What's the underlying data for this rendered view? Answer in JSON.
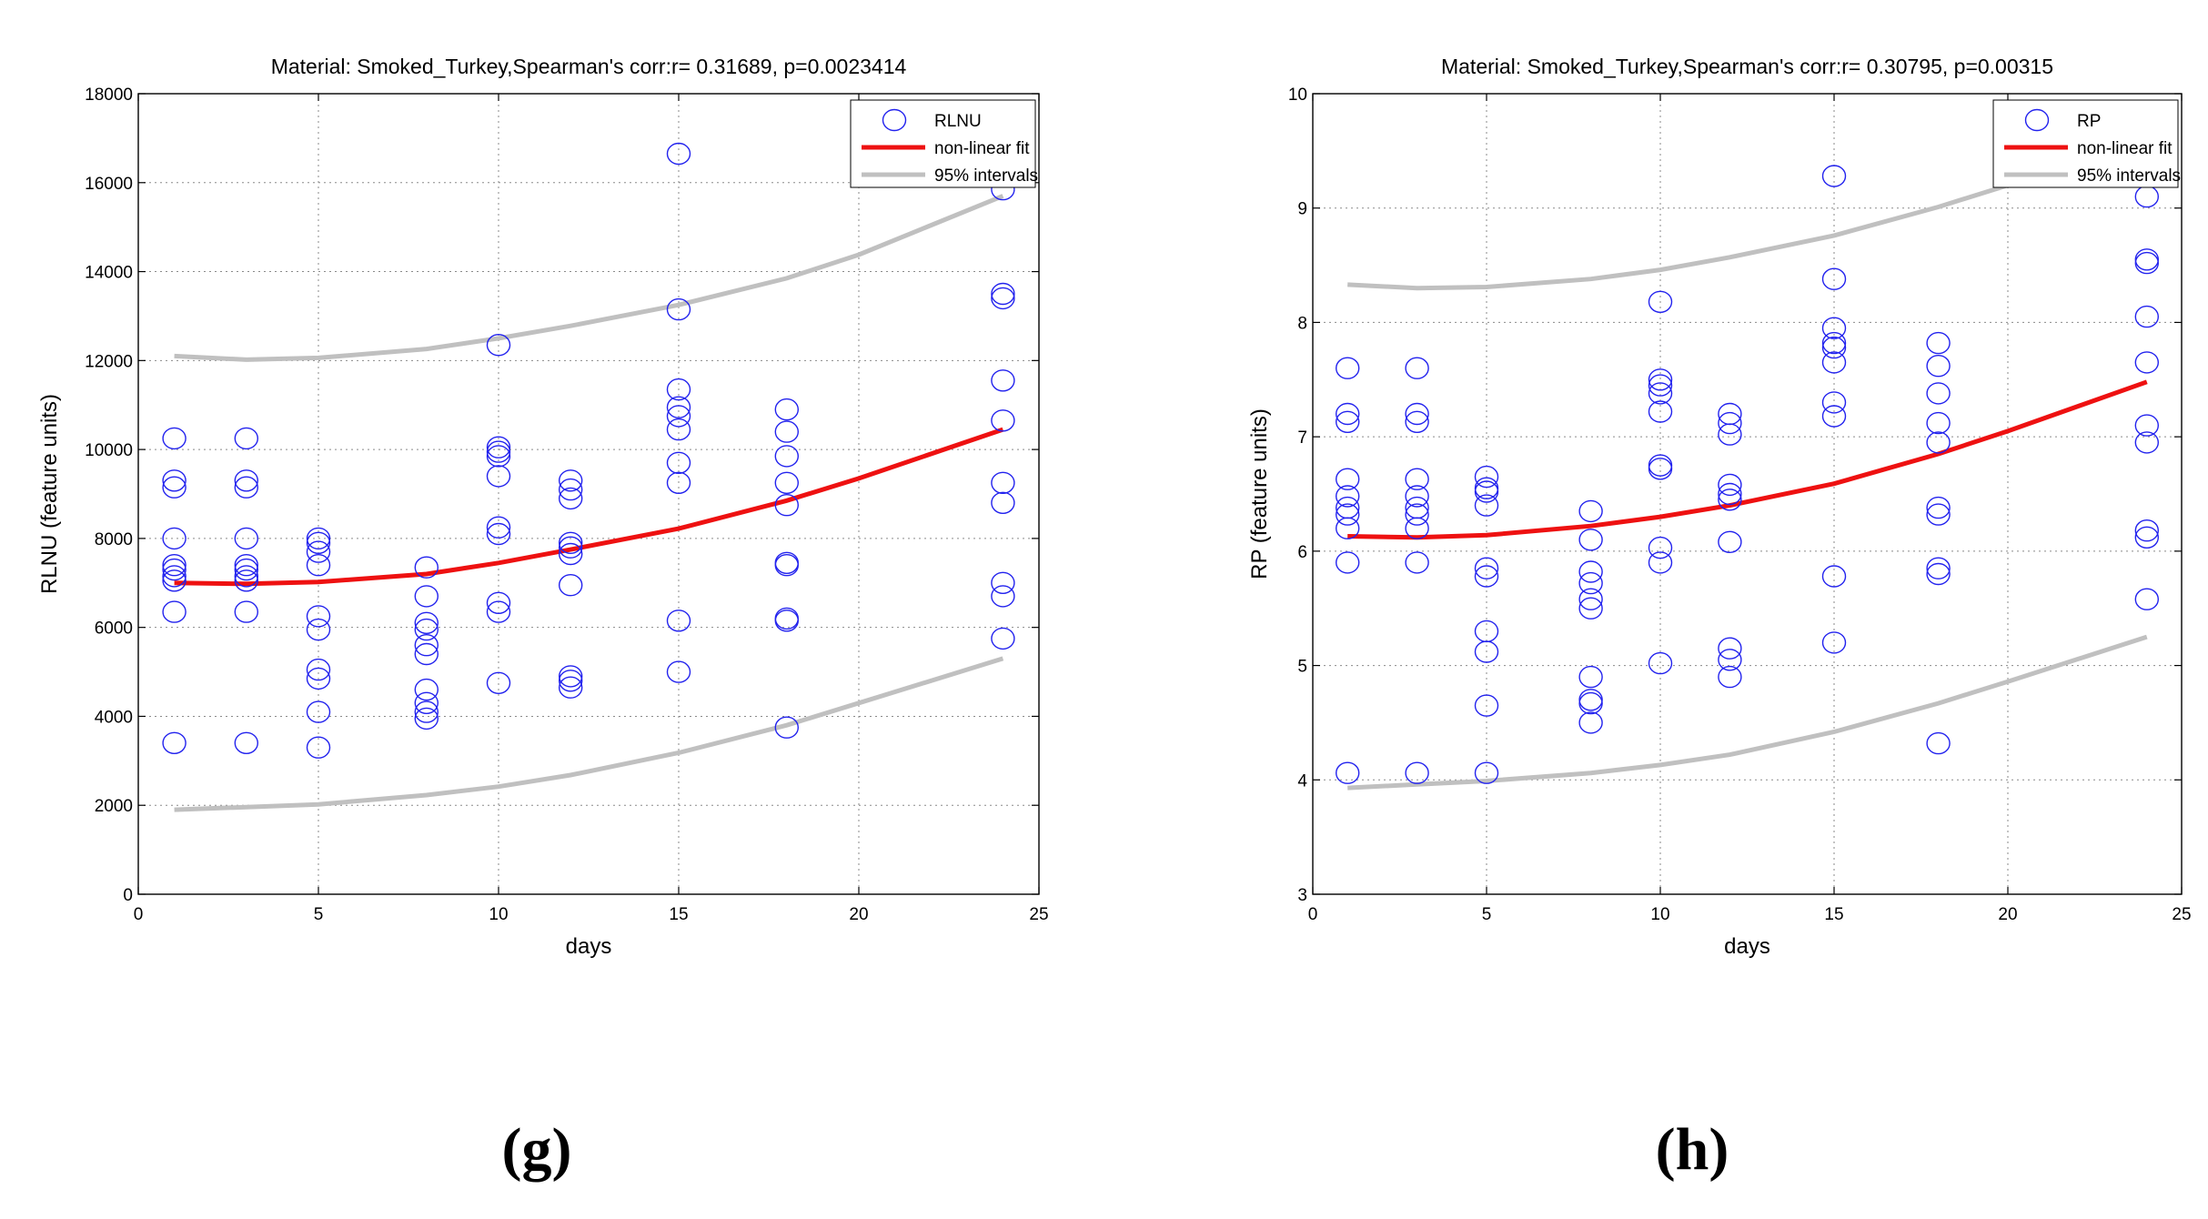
{
  "chart_data": [
    {
      "panel": "g",
      "type": "scatter",
      "title": "Material: Smoked_Turkey,Spearman's corr:r= 0.31689, p=0.0023414",
      "xlabel": "days",
      "ylabel": "RLNU (feature units)",
      "xlim": [
        0,
        25
      ],
      "ylim": [
        0,
        18000
      ],
      "xticks": [
        0,
        5,
        10,
        15,
        20,
        25
      ],
      "yticks": [
        0,
        2000,
        4000,
        6000,
        8000,
        10000,
        12000,
        14000,
        16000,
        18000
      ],
      "grid": true,
      "legend": {
        "position": "top-right",
        "entries": [
          "RLNU",
          "non-linear fit",
          "95% intervals"
        ]
      },
      "colors": {
        "points": "#2222ee",
        "fit": "#ee1111",
        "interval": "#c0c0c0"
      },
      "points": [
        [
          1,
          10250
        ],
        [
          1,
          9300
        ],
        [
          1,
          9150
        ],
        [
          1,
          8000
        ],
        [
          1,
          7400
        ],
        [
          1,
          7300
        ],
        [
          1,
          7150
        ],
        [
          1,
          7050
        ],
        [
          1,
          6350
        ],
        [
          1,
          3400
        ],
        [
          3,
          10250
        ],
        [
          3,
          9300
        ],
        [
          3,
          9150
        ],
        [
          3,
          8000
        ],
        [
          3,
          7400
        ],
        [
          3,
          7300
        ],
        [
          3,
          7150
        ],
        [
          3,
          7050
        ],
        [
          3,
          6350
        ],
        [
          3,
          3400
        ],
        [
          5,
          8000
        ],
        [
          5,
          7900
        ],
        [
          5,
          7700
        ],
        [
          5,
          7400
        ],
        [
          5,
          6250
        ],
        [
          5,
          5950
        ],
        [
          5,
          5050
        ],
        [
          5,
          4850
        ],
        [
          5,
          4100
        ],
        [
          5,
          3300
        ],
        [
          8,
          7350
        ],
        [
          8,
          6700
        ],
        [
          8,
          6100
        ],
        [
          8,
          5950
        ],
        [
          8,
          5600
        ],
        [
          8,
          5400
        ],
        [
          8,
          4600
        ],
        [
          8,
          4300
        ],
        [
          8,
          4100
        ],
        [
          8,
          3950
        ],
        [
          10,
          12350
        ],
        [
          10,
          10050
        ],
        [
          10,
          9950
        ],
        [
          10,
          9850
        ],
        [
          10,
          9400
        ],
        [
          10,
          8250
        ],
        [
          10,
          8100
        ],
        [
          10,
          6550
        ],
        [
          10,
          6350
        ],
        [
          10,
          4750
        ],
        [
          12,
          9300
        ],
        [
          12,
          9100
        ],
        [
          12,
          8900
        ],
        [
          12,
          7900
        ],
        [
          12,
          7800
        ],
        [
          12,
          7650
        ],
        [
          12,
          6950
        ],
        [
          12,
          4900
        ],
        [
          12,
          4800
        ],
        [
          12,
          4650
        ],
        [
          15,
          16650
        ],
        [
          15,
          13150
        ],
        [
          15,
          11350
        ],
        [
          15,
          10950
        ],
        [
          15,
          10750
        ],
        [
          15,
          10450
        ],
        [
          15,
          9700
        ],
        [
          15,
          9250
        ],
        [
          15,
          6150
        ],
        [
          15,
          5000
        ],
        [
          18,
          10900
        ],
        [
          18,
          10400
        ],
        [
          18,
          9850
        ],
        [
          18,
          9250
        ],
        [
          18,
          8750
        ],
        [
          18,
          7450
        ],
        [
          18,
          7400
        ],
        [
          18,
          6200
        ],
        [
          18,
          6150
        ],
        [
          18,
          3750
        ],
        [
          24,
          15850
        ],
        [
          24,
          13500
        ],
        [
          24,
          13400
        ],
        [
          24,
          11550
        ],
        [
          24,
          10650
        ],
        [
          24,
          9250
        ],
        [
          24,
          8800
        ],
        [
          24,
          7000
        ],
        [
          24,
          6700
        ],
        [
          24,
          5750
        ]
      ],
      "fit": {
        "x": [
          1,
          3,
          5,
          8,
          10,
          12,
          15,
          18,
          20,
          24
        ],
        "y": [
          7000,
          6980,
          7020,
          7200,
          7450,
          7750,
          8220,
          8850,
          9350,
          10450
        ]
      },
      "upper": {
        "x": [
          1,
          3,
          5,
          8,
          10,
          12,
          15,
          18,
          20,
          24
        ],
        "y": [
          12100,
          12020,
          12060,
          12260,
          12500,
          12780,
          13250,
          13850,
          14380,
          15700
        ]
      },
      "lower": {
        "x": [
          1,
          3,
          5,
          8,
          10,
          12,
          15,
          18,
          20,
          24
        ],
        "y": [
          1900,
          1960,
          2020,
          2230,
          2420,
          2680,
          3180,
          3800,
          4300,
          5300
        ]
      }
    },
    {
      "panel": "h",
      "type": "scatter",
      "title": "Material: Smoked_Turkey,Spearman's corr:r= 0.30795, p=0.00315",
      "xlabel": "days",
      "ylabel": "RP (feature units)",
      "xlim": [
        0,
        25
      ],
      "ylim": [
        3,
        10
      ],
      "xticks": [
        0,
        5,
        10,
        15,
        20,
        25
      ],
      "yticks": [
        3,
        4,
        5,
        6,
        7,
        8,
        9,
        10
      ],
      "grid": true,
      "legend": {
        "position": "top-right",
        "entries": [
          "RP",
          "non-linear fit",
          "95% intervals"
        ]
      },
      "colors": {
        "points": "#2222ee",
        "fit": "#ee1111",
        "interval": "#c0c0c0"
      },
      "points": [
        [
          1,
          7.6
        ],
        [
          1,
          7.2
        ],
        [
          1,
          7.13
        ],
        [
          1,
          6.63
        ],
        [
          1,
          6.48
        ],
        [
          1,
          6.38
        ],
        [
          1,
          6.32
        ],
        [
          1,
          6.2
        ],
        [
          1,
          5.9
        ],
        [
          1,
          4.06
        ],
        [
          3,
          7.6
        ],
        [
          3,
          7.2
        ],
        [
          3,
          7.13
        ],
        [
          3,
          6.63
        ],
        [
          3,
          6.48
        ],
        [
          3,
          6.38
        ],
        [
          3,
          6.32
        ],
        [
          3,
          6.2
        ],
        [
          3,
          5.9
        ],
        [
          3,
          4.06
        ],
        [
          5,
          6.65
        ],
        [
          5,
          6.55
        ],
        [
          5,
          6.52
        ],
        [
          5,
          6.4
        ],
        [
          5,
          5.85
        ],
        [
          5,
          5.78
        ],
        [
          5,
          5.3
        ],
        [
          5,
          5.12
        ],
        [
          5,
          4.65
        ],
        [
          5,
          4.06
        ],
        [
          8,
          6.35
        ],
        [
          8,
          6.1
        ],
        [
          8,
          5.82
        ],
        [
          8,
          5.72
        ],
        [
          8,
          5.58
        ],
        [
          8,
          5.5
        ],
        [
          8,
          4.9
        ],
        [
          8,
          4.7
        ],
        [
          8,
          4.67
        ],
        [
          8,
          4.5
        ],
        [
          10,
          8.18
        ],
        [
          10,
          7.5
        ],
        [
          10,
          7.45
        ],
        [
          10,
          7.38
        ],
        [
          10,
          7.22
        ],
        [
          10,
          6.75
        ],
        [
          10,
          6.72
        ],
        [
          10,
          6.03
        ],
        [
          10,
          5.9
        ],
        [
          10,
          5.02
        ],
        [
          12,
          7.2
        ],
        [
          12,
          7.12
        ],
        [
          12,
          7.02
        ],
        [
          12,
          6.58
        ],
        [
          12,
          6.5
        ],
        [
          12,
          6.45
        ],
        [
          12,
          6.08
        ],
        [
          12,
          5.15
        ],
        [
          12,
          5.05
        ],
        [
          12,
          4.9
        ],
        [
          15,
          9.28
        ],
        [
          15,
          8.38
        ],
        [
          15,
          7.95
        ],
        [
          15,
          7.82
        ],
        [
          15,
          7.78
        ],
        [
          15,
          7.65
        ],
        [
          15,
          7.3
        ],
        [
          15,
          7.18
        ],
        [
          15,
          5.78
        ],
        [
          15,
          5.2
        ],
        [
          18,
          7.82
        ],
        [
          18,
          7.62
        ],
        [
          18,
          7.38
        ],
        [
          18,
          7.12
        ],
        [
          18,
          6.95
        ],
        [
          18,
          6.38
        ],
        [
          18,
          6.32
        ],
        [
          18,
          5.85
        ],
        [
          18,
          5.8
        ],
        [
          18,
          4.32
        ],
        [
          24,
          9.1
        ],
        [
          24,
          8.55
        ],
        [
          24,
          8.52
        ],
        [
          24,
          8.05
        ],
        [
          24,
          7.65
        ],
        [
          24,
          7.1
        ],
        [
          24,
          6.95
        ],
        [
          24,
          6.18
        ],
        [
          24,
          6.12
        ],
        [
          24,
          5.58
        ]
      ],
      "fit": {
        "x": [
          1,
          3,
          5,
          8,
          10,
          12,
          15,
          18,
          20,
          24
        ],
        "y": [
          6.13,
          6.12,
          6.14,
          6.22,
          6.3,
          6.4,
          6.59,
          6.85,
          7.05,
          7.48
        ]
      },
      "upper": {
        "x": [
          1,
          3,
          5,
          8,
          10,
          12,
          15,
          18,
          20,
          24
        ],
        "y": [
          8.33,
          8.3,
          8.31,
          8.38,
          8.46,
          8.57,
          8.76,
          9.01,
          9.2,
          9.62
        ]
      },
      "lower": {
        "x": [
          1,
          3,
          5,
          8,
          10,
          12,
          15,
          18,
          20,
          24
        ],
        "y": [
          3.93,
          3.96,
          3.99,
          4.06,
          4.13,
          4.22,
          4.42,
          4.67,
          4.86,
          5.25
        ]
      }
    }
  ],
  "captions": [
    "(g)",
    "(h)"
  ]
}
